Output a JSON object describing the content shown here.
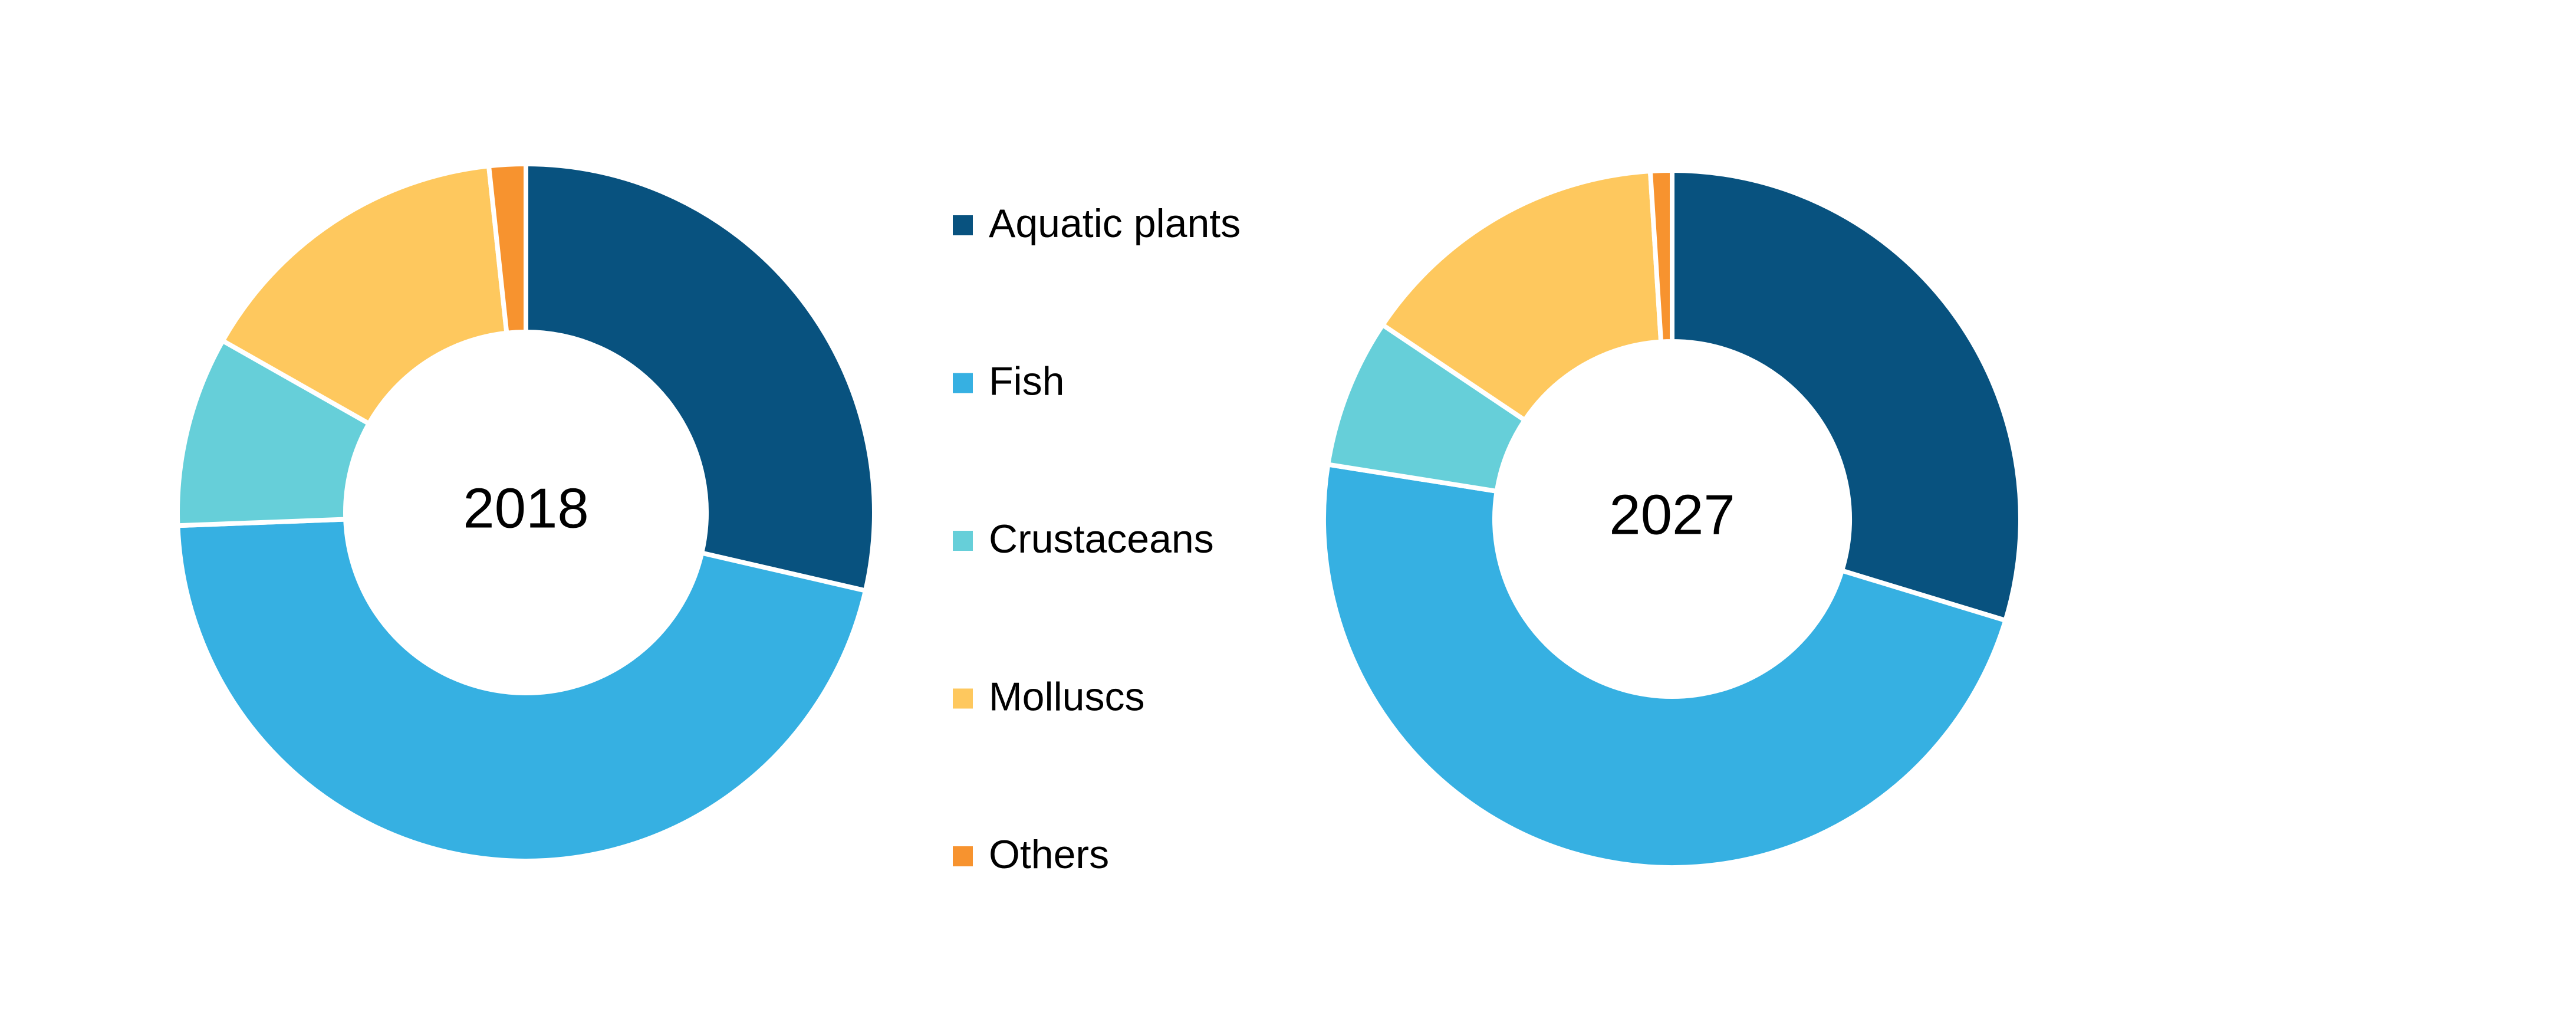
{
  "chart_data": [
    {
      "type": "pie",
      "title": "2018",
      "categories": [
        "Aquatic plants",
        "Fish",
        "Crustaceans",
        "Molluscs",
        "Others"
      ],
      "values": [
        28.6,
        45.8,
        8.8,
        15.1,
        1.7
      ],
      "colors": [
        "#08527f",
        "#36b0e2",
        "#66cfd9",
        "#fec85e",
        "#f7932f"
      ]
    },
    {
      "type": "pie",
      "title": "2027",
      "categories": [
        "Aquatic plants",
        "Fish",
        "Crustaceans",
        "Molluscs",
        "Others"
      ],
      "values": [
        29.7,
        47.8,
        6.9,
        14.6,
        1.0
      ],
      "colors": [
        "#08527f",
        "#36b0e2",
        "#66cfd9",
        "#fec85e",
        "#f7932f"
      ]
    }
  ]
}
